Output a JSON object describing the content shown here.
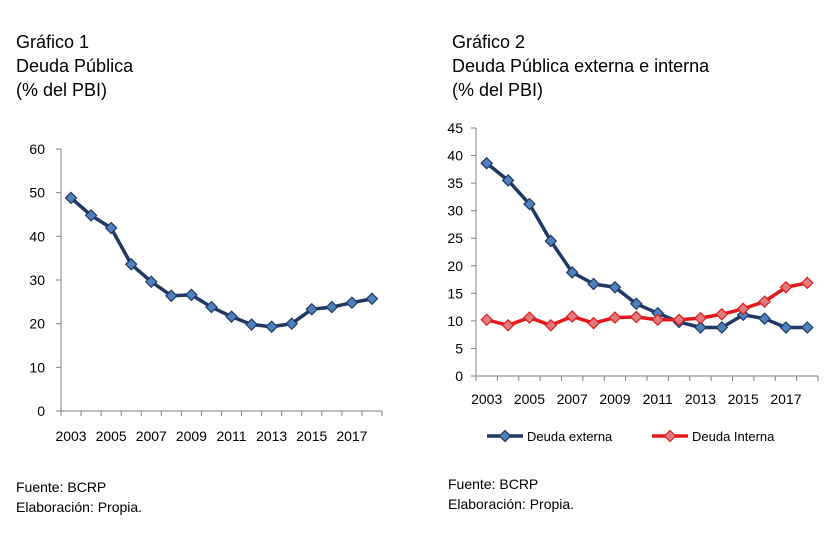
{
  "chart_data": [
    {
      "type": "line",
      "title": "Gráfico 1",
      "subtitle": "Deuda Pública",
      "unit": "(% del PBI)",
      "source": "Fuente: BCRP",
      "credit": "Elaboración: Propia.",
      "x": [
        2003,
        2004,
        2005,
        2006,
        2007,
        2008,
        2009,
        2010,
        2011,
        2012,
        2013,
        2014,
        2015,
        2016,
        2017,
        2018
      ],
      "x_tick_labels": [
        "2003",
        "2005",
        "2007",
        "2009",
        "2011",
        "2013",
        "2015",
        "2017"
      ],
      "y_tick_labels": [
        "0",
        "10",
        "20",
        "30",
        "40",
        "50",
        "60"
      ],
      "ylim": [
        0,
        60
      ],
      "grid": false,
      "series": [
        {
          "values": [
            48.8,
            44.8,
            41.9,
            33.6,
            29.6,
            26.4,
            26.6,
            23.8,
            21.6,
            19.8,
            19.3,
            20.0,
            23.3,
            23.8,
            24.8,
            25.7
          ],
          "color": "#1F3864",
          "marker_color": "#4F81BD"
        }
      ]
    },
    {
      "type": "line",
      "title": "Gráfico 2",
      "subtitle": "Deuda Pública externa e interna",
      "unit": "(% del PBI)",
      "source": "Fuente: BCRP",
      "credit": "Elaboración: Propia.",
      "x": [
        2003,
        2004,
        2005,
        2006,
        2007,
        2008,
        2009,
        2010,
        2011,
        2012,
        2013,
        2014,
        2015,
        2016,
        2017,
        2018
      ],
      "x_tick_labels": [
        "2003",
        "2005",
        "2007",
        "2009",
        "2011",
        "2013",
        "2015",
        "2017"
      ],
      "y_tick_labels": [
        "0",
        "5",
        "10",
        "15",
        "20",
        "25",
        "30",
        "35",
        "40",
        "45"
      ],
      "ylim": [
        0,
        45
      ],
      "grid": false,
      "legend": "bottom",
      "series": [
        {
          "name": "Deuda externa",
          "values": [
            38.6,
            35.5,
            31.2,
            24.5,
            18.8,
            16.7,
            16.1,
            13.1,
            11.4,
            9.8,
            8.8,
            8.8,
            11.1,
            10.4,
            8.8,
            8.8
          ],
          "color": "#1F3864",
          "marker_color": "#4F81BD"
        },
        {
          "name": "Deuda Interna",
          "values": [
            10.2,
            9.2,
            10.6,
            9.2,
            10.8,
            9.6,
            10.6,
            10.7,
            10.2,
            10.2,
            10.5,
            11.2,
            12.2,
            13.5,
            16.1,
            16.9
          ],
          "color": "#E3191C",
          "marker_color": "#E07B7D"
        }
      ]
    }
  ]
}
